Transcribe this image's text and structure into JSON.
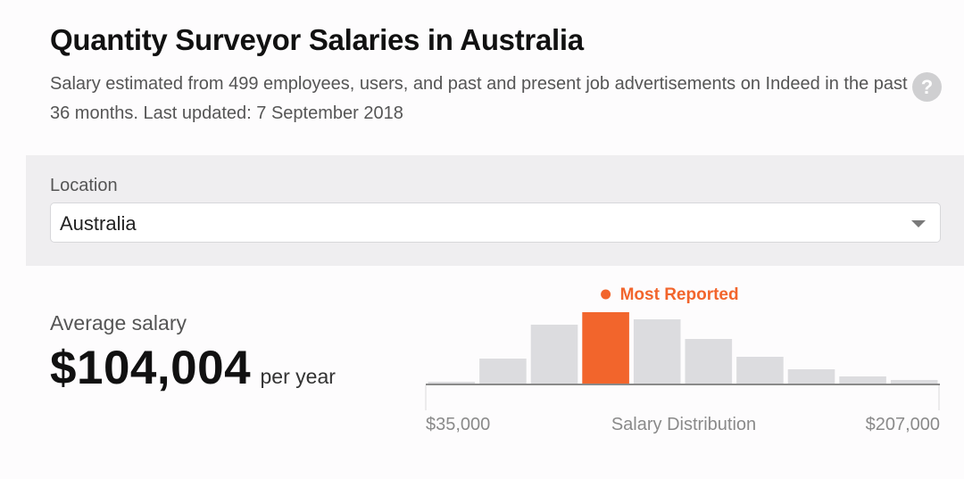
{
  "header": {
    "title": "Quantity Surveyor Salaries in Australia",
    "subtitle": "Salary estimated from 499 employees, users, and past and present job advertisements on Indeed in the past 36 months. Last updated: 7 September 2018",
    "help_icon": "question-mark-icon",
    "help_glyph": "?"
  },
  "location": {
    "label": "Location",
    "selected": "Australia",
    "dropdown_icon": "chevron-down-icon"
  },
  "summary": {
    "label": "Average salary",
    "value": "$104,004",
    "unit": "per year"
  },
  "chart_data": {
    "type": "bar",
    "title": "",
    "xlabel": "Salary Distribution",
    "ylabel": "",
    "x_min_label": "$35,000",
    "x_max_label": "$207,000",
    "range": [
      35000,
      207000
    ],
    "values": [
      1,
      14,
      33,
      40,
      36,
      25,
      15,
      8,
      4,
      2
    ],
    "most_reported_index": 3,
    "most_reported_label": "Most Reported",
    "colors": {
      "bar": "#dcdcdf",
      "highlight": "#f2652c",
      "baseline": "#8a8a8a"
    }
  }
}
